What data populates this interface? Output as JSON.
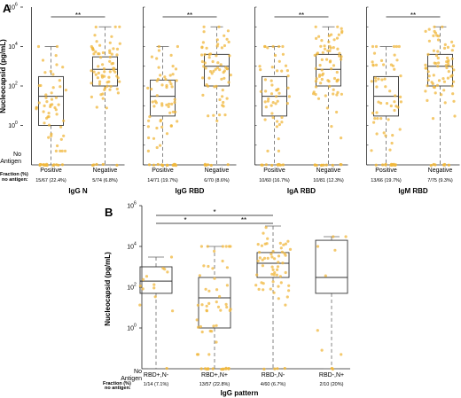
{
  "figure": {
    "colors": {
      "point": "#f0b73c",
      "box": "#333333",
      "whisker": "#666666",
      "sig": "#111111"
    },
    "panel_a": {
      "label": "A",
      "ylabel": "Nucleocapsid (pg/mL)",
      "y_ticks": [
        "10",
        "10",
        "10",
        "10"
      ],
      "y_tick_exps": [
        "0",
        "2",
        "4",
        "6"
      ],
      "no_antigen_line1": "No",
      "no_antigen_line2": "Antigen",
      "fraction_line1": "Fraction (%)",
      "fraction_line2": "no antigen:",
      "groups": [
        {
          "title": "IgG N",
          "cat1": "Positive",
          "cat2": "Negative",
          "frac1": "15/67 (22.4%)",
          "frac2": "5/74 (6.8%)",
          "sig": "**"
        },
        {
          "title": "IgG RBD",
          "cat1": "Positive",
          "cat2": "Negative",
          "frac1": "14/71 (19.7%)",
          "frac2": "6/70 (8.6%)",
          "sig": "**"
        },
        {
          "title": "IgA RBD",
          "cat1": "Positive",
          "cat2": "Negative",
          "frac1": "10/60 (16.7%)",
          "frac2": "10/81 (12.3%)",
          "sig": "**"
        },
        {
          "title": "IgM RBD",
          "cat1": "Positive",
          "cat2": "Negative",
          "frac1": "13/66 (19.7%)",
          "frac2": "7/75 (9.3%)",
          "sig": "**"
        }
      ]
    },
    "panel_b": {
      "label": "B",
      "ylabel": "Nucleocapsid (pg/mL)",
      "y_ticks": [
        "10",
        "10",
        "10",
        "10"
      ],
      "y_tick_exps": [
        "0",
        "2",
        "4",
        "6"
      ],
      "no_antigen_line1": "No",
      "no_antigen_line2": "Antigen",
      "fraction_line1": "Fraction (%)",
      "fraction_line2": "no antigen:",
      "xlabel": "IgG pattern",
      "categories": [
        "RBD+,N-",
        "RBD+,N+",
        "RBD-,N-",
        "RBD-,N+"
      ],
      "fractions": [
        "1/14 (7.1%)",
        "13/57 (22.8%)",
        "4/60 (6.7%)",
        "2/10 (20%)"
      ],
      "sig": [
        {
          "from": 1,
          "to": 3,
          "label": "*"
        },
        {
          "from": 1,
          "to": 2,
          "label": "*"
        },
        {
          "from": 2,
          "to": 3,
          "label": "**"
        }
      ]
    }
  },
  "chart_data": [
    {
      "type": "box",
      "panel": "A",
      "yscale": "log10",
      "ylim": [
        0.01,
        1000000
      ],
      "ylabel": "Nucleocapsid (pg/mL)",
      "groups": [
        "IgG N",
        "IgG RBD",
        "IgA RBD",
        "IgM RBD"
      ],
      "categories": [
        "Positive",
        "Negative"
      ],
      "boxes": [
        {
          "group": "IgG N",
          "category": "Positive",
          "q1": 1,
          "median": 30,
          "q3": 300,
          "whisker_low": 0.01,
          "whisker_high": 10000,
          "n_no_antigen": 15,
          "n_total": 67
        },
        {
          "group": "IgG N",
          "category": "Negative",
          "q1": 100,
          "median": 700,
          "q3": 3000,
          "whisker_low": 0.01,
          "whisker_high": 100000,
          "n_no_antigen": 5,
          "n_total": 74
        },
        {
          "group": "IgG RBD",
          "category": "Positive",
          "q1": 3,
          "median": 30,
          "q3": 200,
          "whisker_low": 0.01,
          "whisker_high": 10000,
          "n_no_antigen": 14,
          "n_total": 71
        },
        {
          "group": "IgG RBD",
          "category": "Negative",
          "q1": 100,
          "median": 1000,
          "q3": 4000,
          "whisker_low": 0.01,
          "whisker_high": 100000,
          "n_no_antigen": 6,
          "n_total": 70
        },
        {
          "group": "IgA RBD",
          "category": "Positive",
          "q1": 3,
          "median": 30,
          "q3": 300,
          "whisker_low": 0.01,
          "whisker_high": 10000,
          "n_no_antigen": 10,
          "n_total": 60
        },
        {
          "group": "IgA RBD",
          "category": "Negative",
          "q1": 100,
          "median": 700,
          "q3": 4000,
          "whisker_low": 0.01,
          "whisker_high": 100000,
          "n_no_antigen": 10,
          "n_total": 81
        },
        {
          "group": "IgM RBD",
          "category": "Positive",
          "q1": 3,
          "median": 30,
          "q3": 300,
          "whisker_low": 0.01,
          "whisker_high": 10000,
          "n_no_antigen": 13,
          "n_total": 66
        },
        {
          "group": "IgM RBD",
          "category": "Negative",
          "q1": 100,
          "median": 1000,
          "q3": 4000,
          "whisker_low": 0.01,
          "whisker_high": 100000,
          "n_no_antigen": 7,
          "n_total": 75
        }
      ],
      "significance": [
        "**",
        "**",
        "**",
        "**"
      ]
    },
    {
      "type": "box",
      "panel": "B",
      "yscale": "log10",
      "ylim": [
        0.01,
        1000000
      ],
      "ylabel": "Nucleocapsid (pg/mL)",
      "xlabel": "IgG pattern",
      "categories": [
        "RBD+,N-",
        "RBD+,N+",
        "RBD-,N-",
        "RBD-,N+"
      ],
      "boxes": [
        {
          "category": "RBD+,N-",
          "q1": 50,
          "median": 200,
          "q3": 1000,
          "whisker_low": 0.01,
          "whisker_high": 3000,
          "n_no_antigen": 1,
          "n_total": 14
        },
        {
          "category": "RBD+,N+",
          "q1": 1,
          "median": 30,
          "q3": 300,
          "whisker_low": 0.01,
          "whisker_high": 10000,
          "n_no_antigen": 13,
          "n_total": 57
        },
        {
          "category": "RBD-,N-",
          "q1": 300,
          "median": 1500,
          "q3": 5000,
          "whisker_low": 0.01,
          "whisker_high": 100000,
          "n_no_antigen": 4,
          "n_total": 60
        },
        {
          "category": "RBD-,N+",
          "q1": 50,
          "median": 300,
          "q3": 20000,
          "whisker_low": 0.01,
          "whisker_high": 30000,
          "n_no_antigen": 2,
          "n_total": 10
        }
      ],
      "significance": [
        {
          "pair": [
            "RBD+,N-",
            "RBD-,N-"
          ],
          "label": "*"
        },
        {
          "pair": [
            "RBD+,N-",
            "RBD+,N+"
          ],
          "label": "*"
        },
        {
          "pair": [
            "RBD+,N+",
            "RBD-,N-"
          ],
          "label": "**"
        }
      ]
    }
  ]
}
